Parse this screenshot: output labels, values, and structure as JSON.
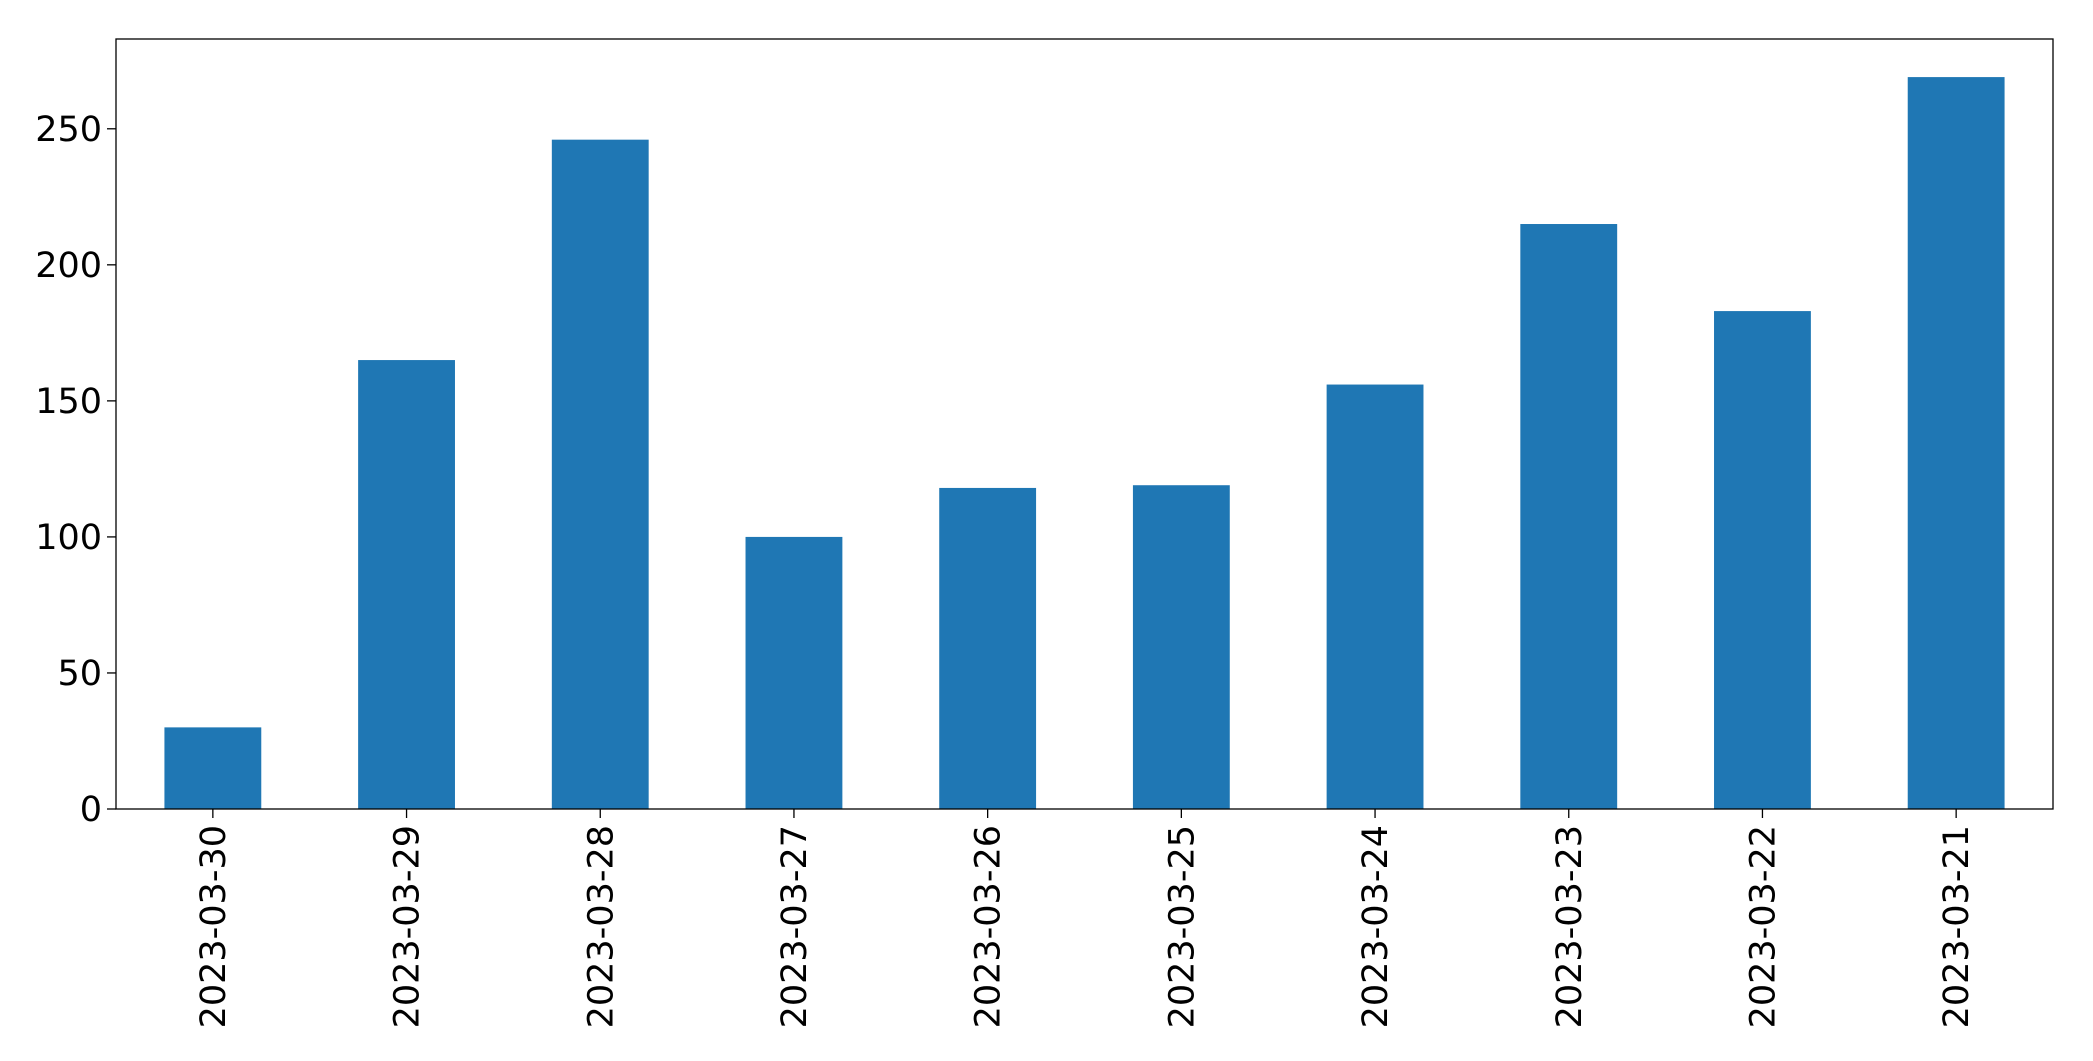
{
  "chart_data": {
    "type": "bar",
    "categories": [
      "2023-03-30",
      "2023-03-29",
      "2023-03-28",
      "2023-03-27",
      "2023-03-26",
      "2023-03-25",
      "2023-03-24",
      "2023-03-23",
      "2023-03-22",
      "2023-03-21"
    ],
    "values": [
      30,
      165,
      246,
      100,
      118,
      119,
      156,
      215,
      183,
      269
    ],
    "color": "#1f77b4",
    "ylim": [
      0,
      283
    ],
    "yticks": [
      0,
      50,
      100,
      150,
      200,
      250
    ],
    "grid": false
  }
}
